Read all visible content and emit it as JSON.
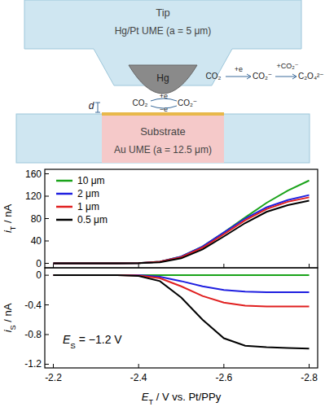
{
  "diagram": {
    "tip_title": "Tip",
    "tip_label": "Hg/Pt UME (a = 5 μm)",
    "drop_label": "Hg",
    "gap_label": "d",
    "cycle": {
      "left": "CO₂",
      "right": "CO₂⁻",
      "forward": "+e",
      "back": "−e"
    },
    "reaction": {
      "reactant": "CO₂",
      "step1": "+e",
      "intermediate": "CO₂⁻",
      "step2": "+CO₂⁻",
      "product": "C₂O₄²⁻"
    },
    "substrate_title": "Substrate",
    "substrate_label": "Au UME (a = 12.5 μm)"
  },
  "chart_data": [
    {
      "type": "line",
      "ylabel": "iT / nA",
      "x": [
        -2.2,
        -2.25,
        -2.3,
        -2.35,
        -2.4,
        -2.45,
        -2.5,
        -2.55,
        -2.6,
        -2.65,
        -2.7,
        -2.75,
        -2.8
      ],
      "series": [
        {
          "name": "10 μm",
          "color": "#1aa31a",
          "values": [
            0,
            0,
            0,
            0,
            0.5,
            3,
            12,
            30,
            55,
            82,
            108,
            130,
            148
          ]
        },
        {
          "name": "2 μm",
          "color": "#1f1fe0",
          "values": [
            0,
            0,
            0,
            0,
            0.5,
            3,
            12,
            30,
            55,
            80,
            100,
            113,
            122
          ]
        },
        {
          "name": "1 μm",
          "color": "#e01f1f",
          "values": [
            0,
            0,
            0,
            0,
            0.5,
            3,
            11,
            28,
            52,
            77,
            97,
            110,
            118
          ]
        },
        {
          "name": "0.5 μm",
          "color": "#000000",
          "values": [
            0,
            0,
            0,
            0,
            0.5,
            2,
            9,
            25,
            48,
            72,
            92,
            104,
            112
          ]
        }
      ],
      "xlim": [
        -2.18,
        -2.82
      ],
      "xticks": [
        -2.2,
        -2.4,
        -2.6,
        -2.8
      ],
      "ylim": [
        -8,
        168
      ],
      "yticks": [
        0,
        40,
        80,
        120,
        160
      ],
      "legend": "upper left",
      "tick_labels": "y"
    },
    {
      "type": "line",
      "ylabel": "iS / nA",
      "xlabel": "ET / V vs. Pt/PPy",
      "annotation": "ES = −1.2 V",
      "x": [
        -2.2,
        -2.25,
        -2.3,
        -2.35,
        -2.4,
        -2.45,
        -2.5,
        -2.55,
        -2.6,
        -2.65,
        -2.7,
        -2.75,
        -2.8
      ],
      "series": [
        {
          "name": "10 μm",
          "color": "#1aa31a",
          "values": [
            0,
            0,
            0,
            0,
            0,
            0,
            0,
            0,
            0,
            0,
            0,
            0,
            0
          ]
        },
        {
          "name": "2 μm",
          "color": "#1f1fe0",
          "values": [
            0,
            0,
            0,
            0,
            0,
            -0.02,
            -0.08,
            -0.15,
            -0.2,
            -0.22,
            -0.23,
            -0.23,
            -0.23
          ]
        },
        {
          "name": "1 μm",
          "color": "#e01f1f",
          "values": [
            0,
            0,
            0,
            0,
            -0.005,
            -0.04,
            -0.15,
            -0.28,
            -0.37,
            -0.41,
            -0.42,
            -0.42,
            -0.42
          ]
        },
        {
          "name": "0.5 μm",
          "color": "#000000",
          "values": [
            0,
            0,
            0,
            0,
            -0.01,
            -0.08,
            -0.3,
            -0.6,
            -0.85,
            -0.95,
            -0.97,
            -0.98,
            -0.99
          ]
        }
      ],
      "xlim": [
        -2.18,
        -2.82
      ],
      "xticks": [
        -2.2,
        -2.4,
        -2.6,
        -2.8
      ],
      "ylim": [
        -1.25,
        0.1
      ],
      "yticks": [
        -1.2,
        -0.8,
        -0.4,
        0
      ]
    }
  ]
}
